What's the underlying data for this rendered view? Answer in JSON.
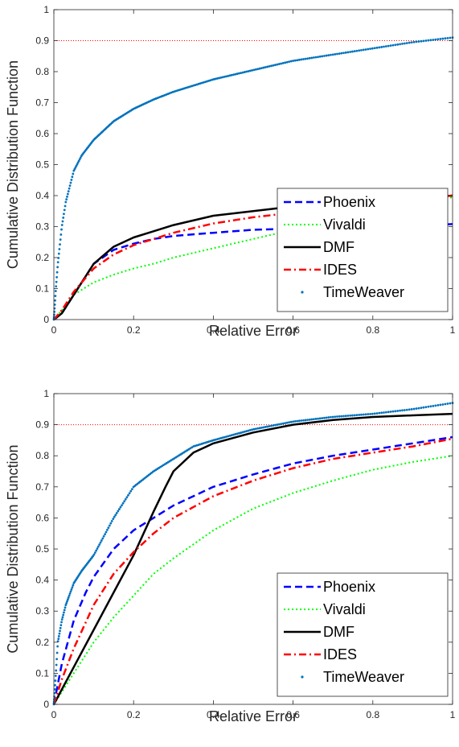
{
  "colors": {
    "phoenix": "#0000ff",
    "vivaldi": "#00ff00",
    "dmf": "#000000",
    "ides": "#ff0000",
    "timeweaver": "#0072bd",
    "reference": "#ff0000",
    "axis": "#262626"
  },
  "chart_data": [
    {
      "type": "line",
      "title": "",
      "xlabel": "Relative Error",
      "ylabel": "Cumulative Distribution Function",
      "xlim": [
        0,
        1
      ],
      "ylim": [
        0,
        1
      ],
      "x_ticks": [
        "0",
        "0.2",
        "0.4",
        "0.6",
        "0.8",
        "1"
      ],
      "y_ticks": [
        "0",
        "0.1",
        "0.2",
        "0.3",
        "0.4",
        "0.5",
        "0.6",
        "0.7",
        "0.8",
        "0.9",
        "1"
      ],
      "grid": false,
      "legend_position": "bottom-right",
      "reference_line": {
        "y": 0.9,
        "style": "dotted"
      },
      "series": [
        {
          "name": "Phoenix",
          "key": "phoenix",
          "style": "dashed",
          "x": [
            0,
            0.02,
            0.05,
            0.1,
            0.15,
            0.2,
            0.25,
            0.3,
            0.4,
            0.5,
            0.6,
            0.7,
            0.8,
            0.9,
            1.0
          ],
          "y": [
            0,
            0.02,
            0.08,
            0.18,
            0.225,
            0.245,
            0.26,
            0.27,
            0.28,
            0.29,
            0.293,
            0.296,
            0.299,
            0.302,
            0.308
          ]
        },
        {
          "name": "Vivaldi",
          "key": "vivaldi",
          "style": "dotted",
          "x": [
            0,
            0.02,
            0.05,
            0.1,
            0.15,
            0.2,
            0.25,
            0.3,
            0.4,
            0.5,
            0.6,
            0.7,
            0.8,
            0.9,
            1.0
          ],
          "y": [
            0,
            0.03,
            0.08,
            0.12,
            0.145,
            0.165,
            0.18,
            0.2,
            0.23,
            0.26,
            0.29,
            0.31,
            0.34,
            0.37,
            0.395
          ]
        },
        {
          "name": "DMF",
          "key": "dmf",
          "style": "solid",
          "x": [
            0,
            0.02,
            0.05,
            0.1,
            0.15,
            0.2,
            0.25,
            0.3,
            0.4,
            0.5,
            0.6,
            0.7,
            0.8,
            0.9,
            1.0
          ],
          "y": [
            0,
            0.02,
            0.08,
            0.18,
            0.235,
            0.265,
            0.285,
            0.305,
            0.335,
            0.35,
            0.365,
            0.375,
            0.38,
            0.39,
            0.4
          ]
        },
        {
          "name": "IDES",
          "key": "ides",
          "style": "dashdot",
          "x": [
            0,
            0.02,
            0.05,
            0.1,
            0.15,
            0.2,
            0.25,
            0.3,
            0.4,
            0.5,
            0.6,
            0.7,
            0.8,
            0.9,
            1.0
          ],
          "y": [
            0,
            0.03,
            0.09,
            0.165,
            0.21,
            0.24,
            0.26,
            0.28,
            0.31,
            0.33,
            0.345,
            0.36,
            0.375,
            0.39,
            0.4
          ]
        },
        {
          "name": "TimeWeaver",
          "key": "timeweaver",
          "style": "markers",
          "x": [
            0,
            0.005,
            0.01,
            0.02,
            0.03,
            0.05,
            0.07,
            0.1,
            0.15,
            0.2,
            0.25,
            0.3,
            0.4,
            0.5,
            0.6,
            0.7,
            0.8,
            0.9,
            1.0
          ],
          "y": [
            0,
            0.1,
            0.18,
            0.3,
            0.38,
            0.48,
            0.53,
            0.58,
            0.64,
            0.68,
            0.71,
            0.735,
            0.775,
            0.805,
            0.835,
            0.855,
            0.875,
            0.895,
            0.91
          ]
        }
      ]
    },
    {
      "type": "line",
      "title": "",
      "xlabel": "Relative Error",
      "ylabel": "Cumulative Distribution Function",
      "xlim": [
        0,
        1
      ],
      "ylim": [
        0,
        1
      ],
      "x_ticks": [
        "0",
        "0.2",
        "0.4",
        "0.6",
        "0.8",
        "1"
      ],
      "y_ticks": [
        "0",
        "0.1",
        "0.2",
        "0.3",
        "0.4",
        "0.5",
        "0.6",
        "0.7",
        "0.8",
        "0.9",
        "1"
      ],
      "grid": false,
      "legend_position": "bottom-right",
      "reference_line": {
        "y": 0.9,
        "style": "dotted"
      },
      "series": [
        {
          "name": "Phoenix",
          "key": "phoenix",
          "style": "dashed",
          "x": [
            0,
            0.02,
            0.05,
            0.08,
            0.1,
            0.15,
            0.2,
            0.25,
            0.3,
            0.4,
            0.5,
            0.6,
            0.7,
            0.8,
            0.9,
            1.0
          ],
          "y": [
            0,
            0.13,
            0.27,
            0.36,
            0.41,
            0.5,
            0.56,
            0.6,
            0.64,
            0.7,
            0.74,
            0.775,
            0.8,
            0.82,
            0.84,
            0.86
          ]
        },
        {
          "name": "Vivaldi",
          "key": "vivaldi",
          "style": "dotted",
          "x": [
            0,
            0.05,
            0.1,
            0.15,
            0.2,
            0.25,
            0.3,
            0.4,
            0.5,
            0.6,
            0.7,
            0.8,
            0.9,
            1.0
          ],
          "y": [
            0,
            0.1,
            0.2,
            0.28,
            0.35,
            0.42,
            0.47,
            0.56,
            0.63,
            0.68,
            0.72,
            0.755,
            0.78,
            0.8
          ]
        },
        {
          "name": "DMF",
          "key": "dmf",
          "style": "solid",
          "x": [
            0,
            0.05,
            0.1,
            0.15,
            0.2,
            0.25,
            0.28,
            0.3,
            0.35,
            0.4,
            0.5,
            0.6,
            0.7,
            0.8,
            0.9,
            1.0
          ],
          "y": [
            0,
            0.12,
            0.24,
            0.36,
            0.48,
            0.62,
            0.7,
            0.75,
            0.81,
            0.84,
            0.875,
            0.9,
            0.915,
            0.925,
            0.93,
            0.935
          ]
        },
        {
          "name": "IDES",
          "key": "ides",
          "style": "dashdot",
          "x": [
            0,
            0.02,
            0.05,
            0.1,
            0.15,
            0.2,
            0.25,
            0.3,
            0.4,
            0.5,
            0.6,
            0.7,
            0.8,
            0.9,
            1.0
          ],
          "y": [
            0,
            0.08,
            0.18,
            0.32,
            0.42,
            0.49,
            0.55,
            0.6,
            0.67,
            0.72,
            0.76,
            0.79,
            0.81,
            0.83,
            0.855
          ]
        },
        {
          "name": "TimeWeaver",
          "key": "timeweaver",
          "style": "markers",
          "x": [
            0,
            0.005,
            0.01,
            0.02,
            0.03,
            0.05,
            0.07,
            0.1,
            0.15,
            0.2,
            0.25,
            0.3,
            0.35,
            0.4,
            0.5,
            0.6,
            0.7,
            0.8,
            0.9,
            1.0
          ],
          "y": [
            0,
            0.1,
            0.2,
            0.27,
            0.32,
            0.39,
            0.43,
            0.48,
            0.6,
            0.7,
            0.75,
            0.79,
            0.83,
            0.85,
            0.885,
            0.91,
            0.925,
            0.935,
            0.95,
            0.97
          ]
        }
      ]
    }
  ]
}
